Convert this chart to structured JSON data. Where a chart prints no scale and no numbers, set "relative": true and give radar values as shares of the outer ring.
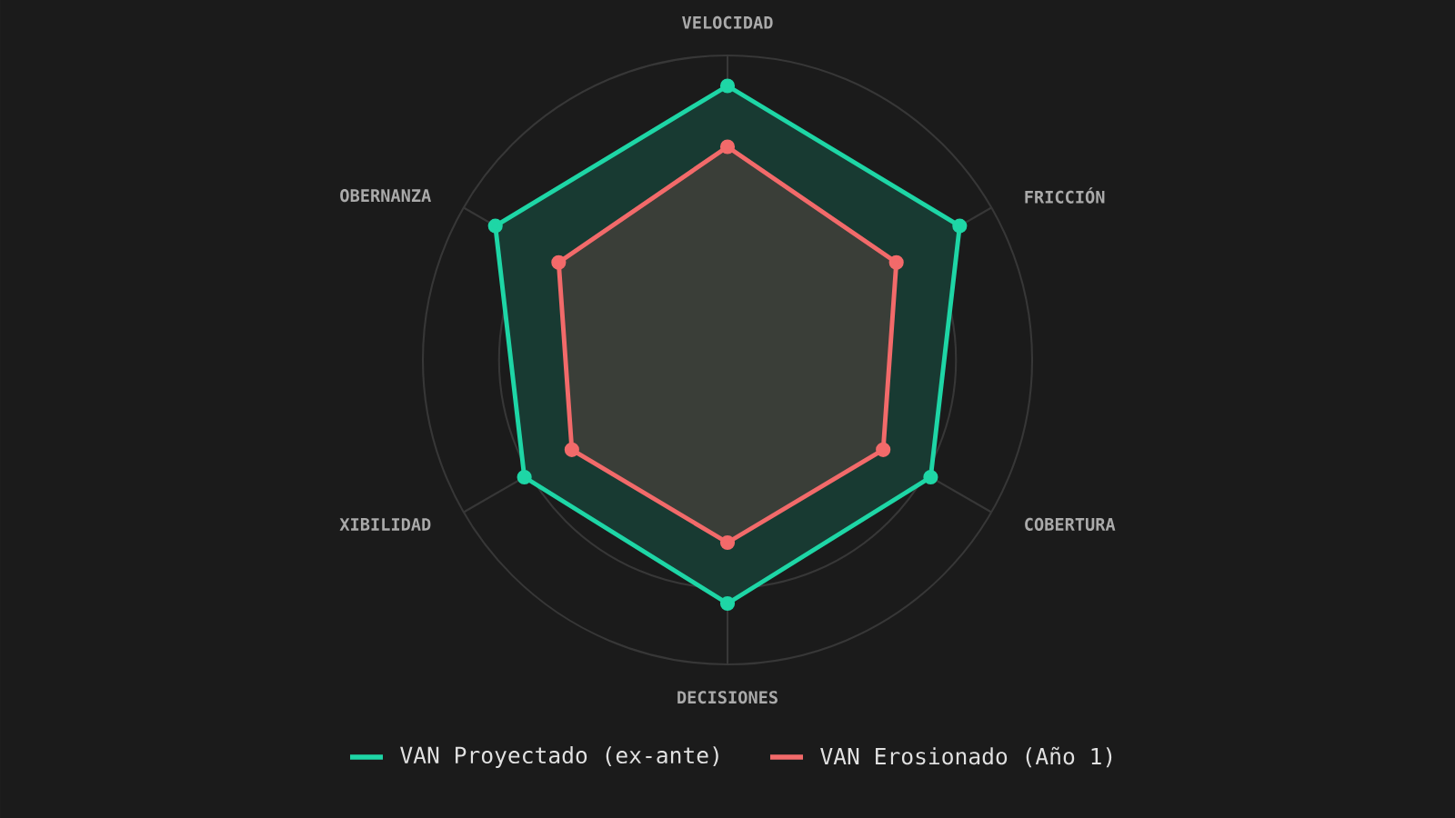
{
  "chart_data": {
    "type": "radar",
    "relative": true,
    "categories": [
      "VELOCIDAD",
      "FRICCIÓN",
      "COBERTURA",
      "DECISIONES",
      "XIBILIDAD",
      "OBERNANZA"
    ],
    "series": [
      {
        "name": "VAN Proyectado (ex-ante)",
        "color": "#1ed6a6",
        "values": [
          0.9,
          0.88,
          0.77,
          0.8,
          0.77,
          0.88
        ]
      },
      {
        "name": "VAN Erosionado (Año 1)",
        "color": "#f26a6a",
        "values": [
          0.7,
          0.64,
          0.59,
          0.6,
          0.59,
          0.64
        ]
      }
    ],
    "grid": true,
    "legend": "bottom",
    "marker": "circle",
    "line_style": "solid"
  }
}
